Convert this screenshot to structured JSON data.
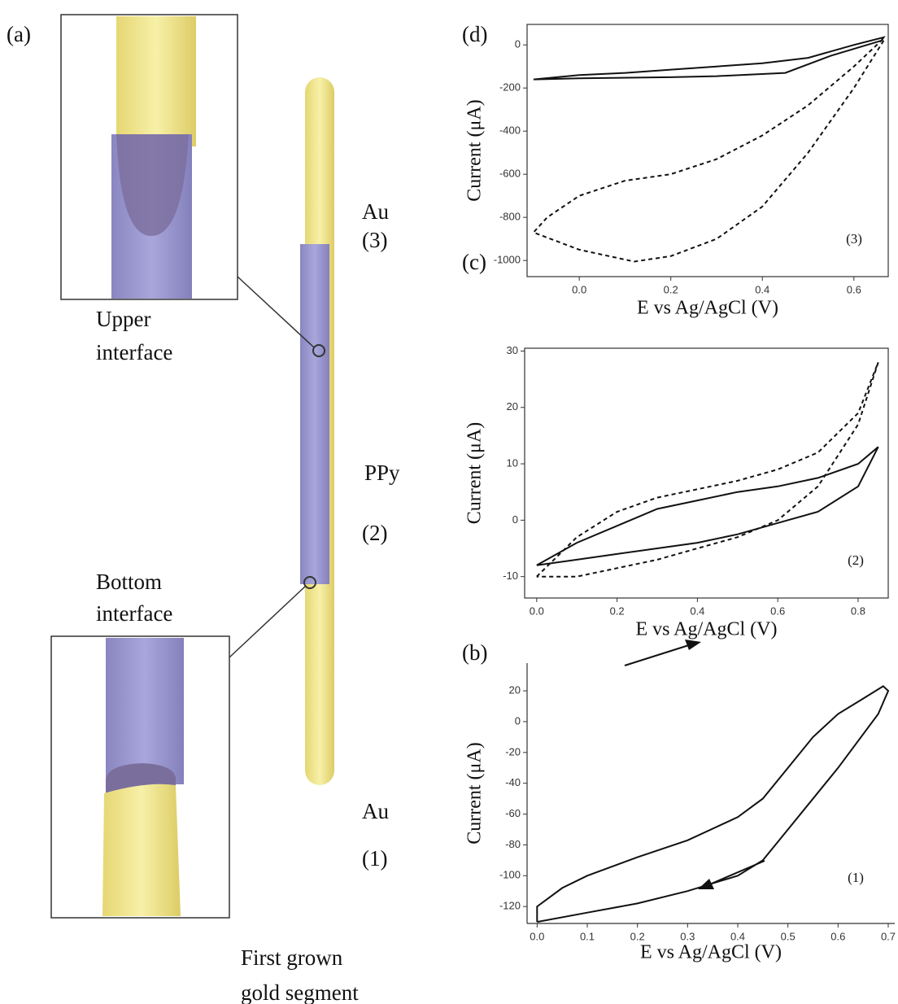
{
  "diagram": {
    "panel": "(a)",
    "au_top": "Au",
    "au_top_num": "(3)",
    "upper_interface": [
      "Upper",
      "interface"
    ],
    "ppy": "PPy",
    "ppy_num": "(2)",
    "bottom_interface": [
      "Bottom",
      "interface"
    ],
    "au_bottom": "Au",
    "au_bottom_num": "(1)",
    "first_segment": [
      "First grown",
      "gold segment"
    ]
  },
  "chart_data": [
    {
      "type": "line",
      "label": "(d)",
      "xlabel": "E vs Ag/AgCl (V)",
      "ylabel": "Current (μA)",
      "annotation": "(3)",
      "box": true,
      "xlim": [
        -0.114,
        0.675
      ],
      "ylim": [
        -1075,
        95
      ],
      "xticks": [
        {
          "value": 0,
          "label": "0.0"
        },
        0.2,
        0.4,
        0.6
      ],
      "yticks": [
        0,
        -200,
        -400,
        -600,
        -800,
        -1000
      ],
      "series": [
        {
          "color": "#111111",
          "dash": false,
          "x": [
            -0.1,
            0.0,
            0.1,
            0.2,
            0.3,
            0.4,
            0.5,
            0.6,
            0.665,
            0.66,
            0.55,
            0.45,
            0.3,
            0.2,
            0.0,
            -0.1
          ],
          "values": [
            -160,
            -140,
            -130,
            -115,
            -100,
            -85,
            -60,
            0,
            35,
            20,
            -50,
            -130,
            -145,
            -150,
            -155,
            -160
          ]
        },
        {
          "color": "#111111",
          "dash": true,
          "x": [
            0.665,
            0.6,
            0.5,
            0.4,
            0.3,
            0.2,
            0.12,
            0.0,
            -0.1,
            -0.07,
            0.0,
            0.1,
            0.2,
            0.3,
            0.4,
            0.5,
            0.6,
            0.665
          ],
          "values": [
            20,
            -200,
            -500,
            -750,
            -900,
            -980,
            -1005,
            -950,
            -870,
            -800,
            -700,
            -630,
            -600,
            -530,
            -420,
            -280,
            -100,
            30
          ]
        }
      ]
    },
    {
      "type": "line",
      "label": "(c)",
      "xlabel": "E vs Ag/AgCl (V)",
      "ylabel": "Current (μA)",
      "annotation": "(2)",
      "box": true,
      "xlim": [
        -0.03,
        0.875
      ],
      "ylim": [
        -13.8,
        30.5
      ],
      "xticks": [
        {
          "value": 0,
          "label": "0.0"
        },
        0.2,
        0.4,
        0.6,
        0.8
      ],
      "yticks": [
        30,
        20,
        10,
        0,
        -10
      ],
      "series": [
        {
          "color": "#111111",
          "dash": false,
          "x": [
            0,
            0.1,
            0.2,
            0.3,
            0.4,
            0.5,
            0.6,
            0.7,
            0.8,
            0.85,
            0.8,
            0.7,
            0.6,
            0.5,
            0.4,
            0.3,
            0.2,
            0.1,
            0
          ],
          "values": [
            -8,
            -4,
            -1,
            2,
            3.5,
            5,
            6,
            7.5,
            10,
            13,
            6,
            1.5,
            -0.5,
            -2.5,
            -4,
            -5,
            -6,
            -7,
            -8
          ]
        },
        {
          "color": "#111111",
          "dash": true,
          "x": [
            0,
            0.1,
            0.2,
            0.3,
            0.4,
            0.5,
            0.6,
            0.7,
            0.8,
            0.85,
            0.8,
            0.7,
            0.6,
            0.5,
            0.4,
            0.3,
            0.2,
            0.1,
            0
          ],
          "values": [
            -10,
            -3,
            1.5,
            4,
            5.5,
            7,
            9,
            12,
            19,
            28,
            17,
            6,
            0,
            -3,
            -5,
            -7,
            -8.5,
            -10,
            -10
          ]
        }
      ]
    },
    {
      "type": "line",
      "label": "(b)",
      "xlabel": "E vs Ag/AgCl (V)",
      "ylabel": "Current (μA)",
      "annotation": "(1)",
      "box": false,
      "xlim": [
        -0.02,
        0.713
      ],
      "ylim": [
        -131,
        38
      ],
      "xticks": [
        {
          "value": 0,
          "label": "0.0"
        },
        0.1,
        0.2,
        0.3,
        0.4,
        0.5,
        0.6,
        0.7
      ],
      "yticks": [
        20,
        0,
        -20,
        -40,
        -60,
        -80,
        -100,
        -120
      ],
      "series": [
        {
          "color": "#111111",
          "dash": false,
          "x": [
            0,
            0,
            0.05,
            0.1,
            0.2,
            0.3,
            0.4,
            0.45,
            0.5,
            0.55,
            0.6,
            0.65,
            0.69,
            0.7,
            0.68,
            0.6,
            0.5,
            0.45,
            0.4,
            0.3,
            0.2,
            0.1,
            0
          ],
          "values": [
            -130,
            -120,
            -108,
            -100,
            -88,
            -77,
            -62,
            -50,
            -30,
            -10,
            5,
            15,
            23,
            20,
            5,
            -30,
            -70,
            -90,
            -100,
            -110,
            -118,
            -124,
            -130
          ]
        }
      ]
    }
  ]
}
